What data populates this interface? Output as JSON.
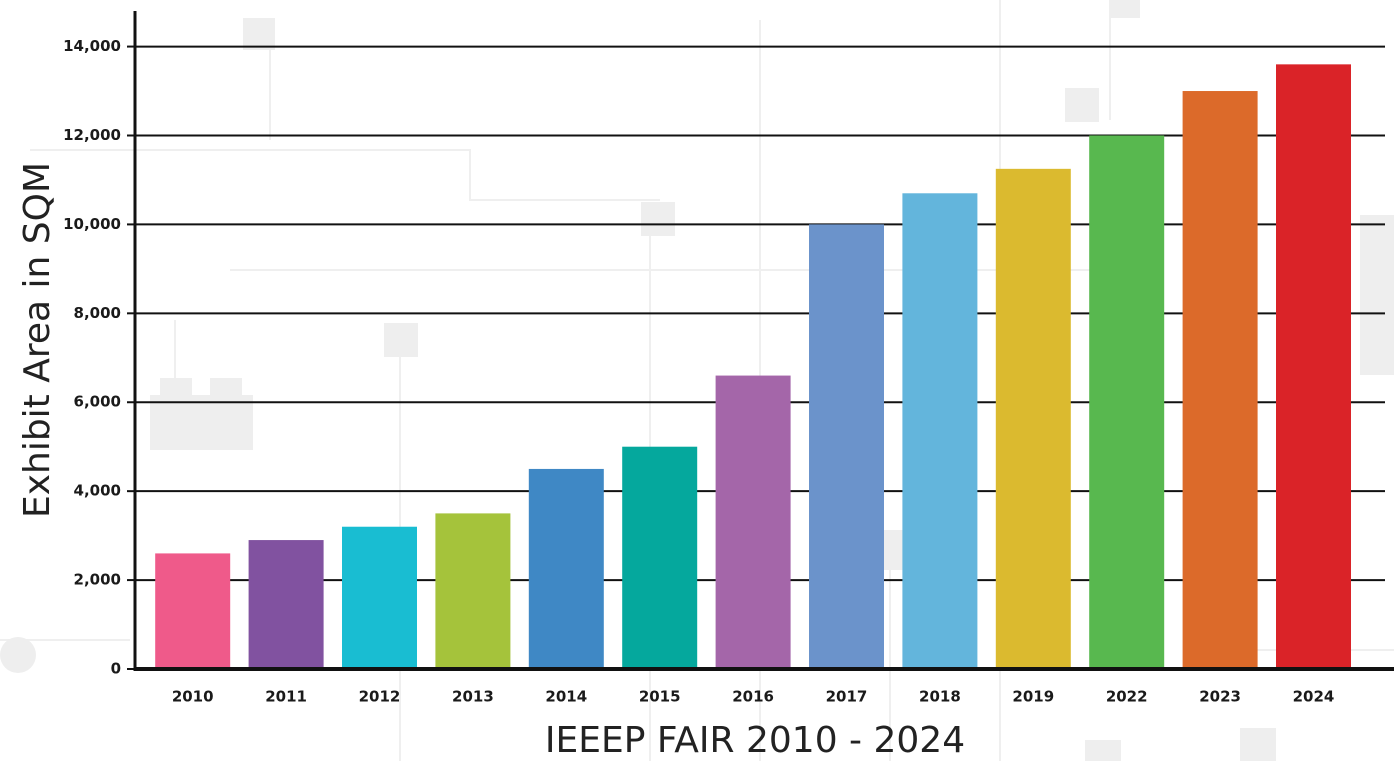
{
  "chart_data": {
    "type": "bar",
    "x_label": "IEEEP FAIR 2010 - 2024",
    "y_label": "Exhibit Area in SQM",
    "categories": [
      "2010",
      "2011",
      "2012",
      "2013",
      "2014",
      "2015",
      "2016",
      "2017",
      "2018",
      "2019",
      "2022",
      "2023",
      "2024"
    ],
    "values": [
      2600,
      2900,
      3200,
      3500,
      4500,
      5000,
      6600,
      10000,
      10700,
      11250,
      12000,
      13000,
      13600
    ],
    "colors": [
      "#ef5a8a",
      "#8152a0",
      "#19bdd2",
      "#a5c33b",
      "#3f88c5",
      "#05a89d",
      "#a466a9",
      "#6b93cb",
      "#63b5dc",
      "#dbba2f",
      "#58b84f",
      "#dc6a2a",
      "#da2328"
    ],
    "ylim": [
      0,
      14800
    ],
    "yticks": [
      0,
      {
        "value": 2000,
        "label": "2,000"
      },
      {
        "value": 4000,
        "label": "4,000"
      },
      {
        "value": 6000,
        "label": "6,000"
      },
      {
        "value": 8000,
        "label": "8,000"
      },
      {
        "value": 10000,
        "label": "10,000"
      },
      {
        "value": 12000,
        "label": "12,000"
      },
      {
        "value": 14000,
        "label": "14,000"
      }
    ],
    "grid": true
  }
}
